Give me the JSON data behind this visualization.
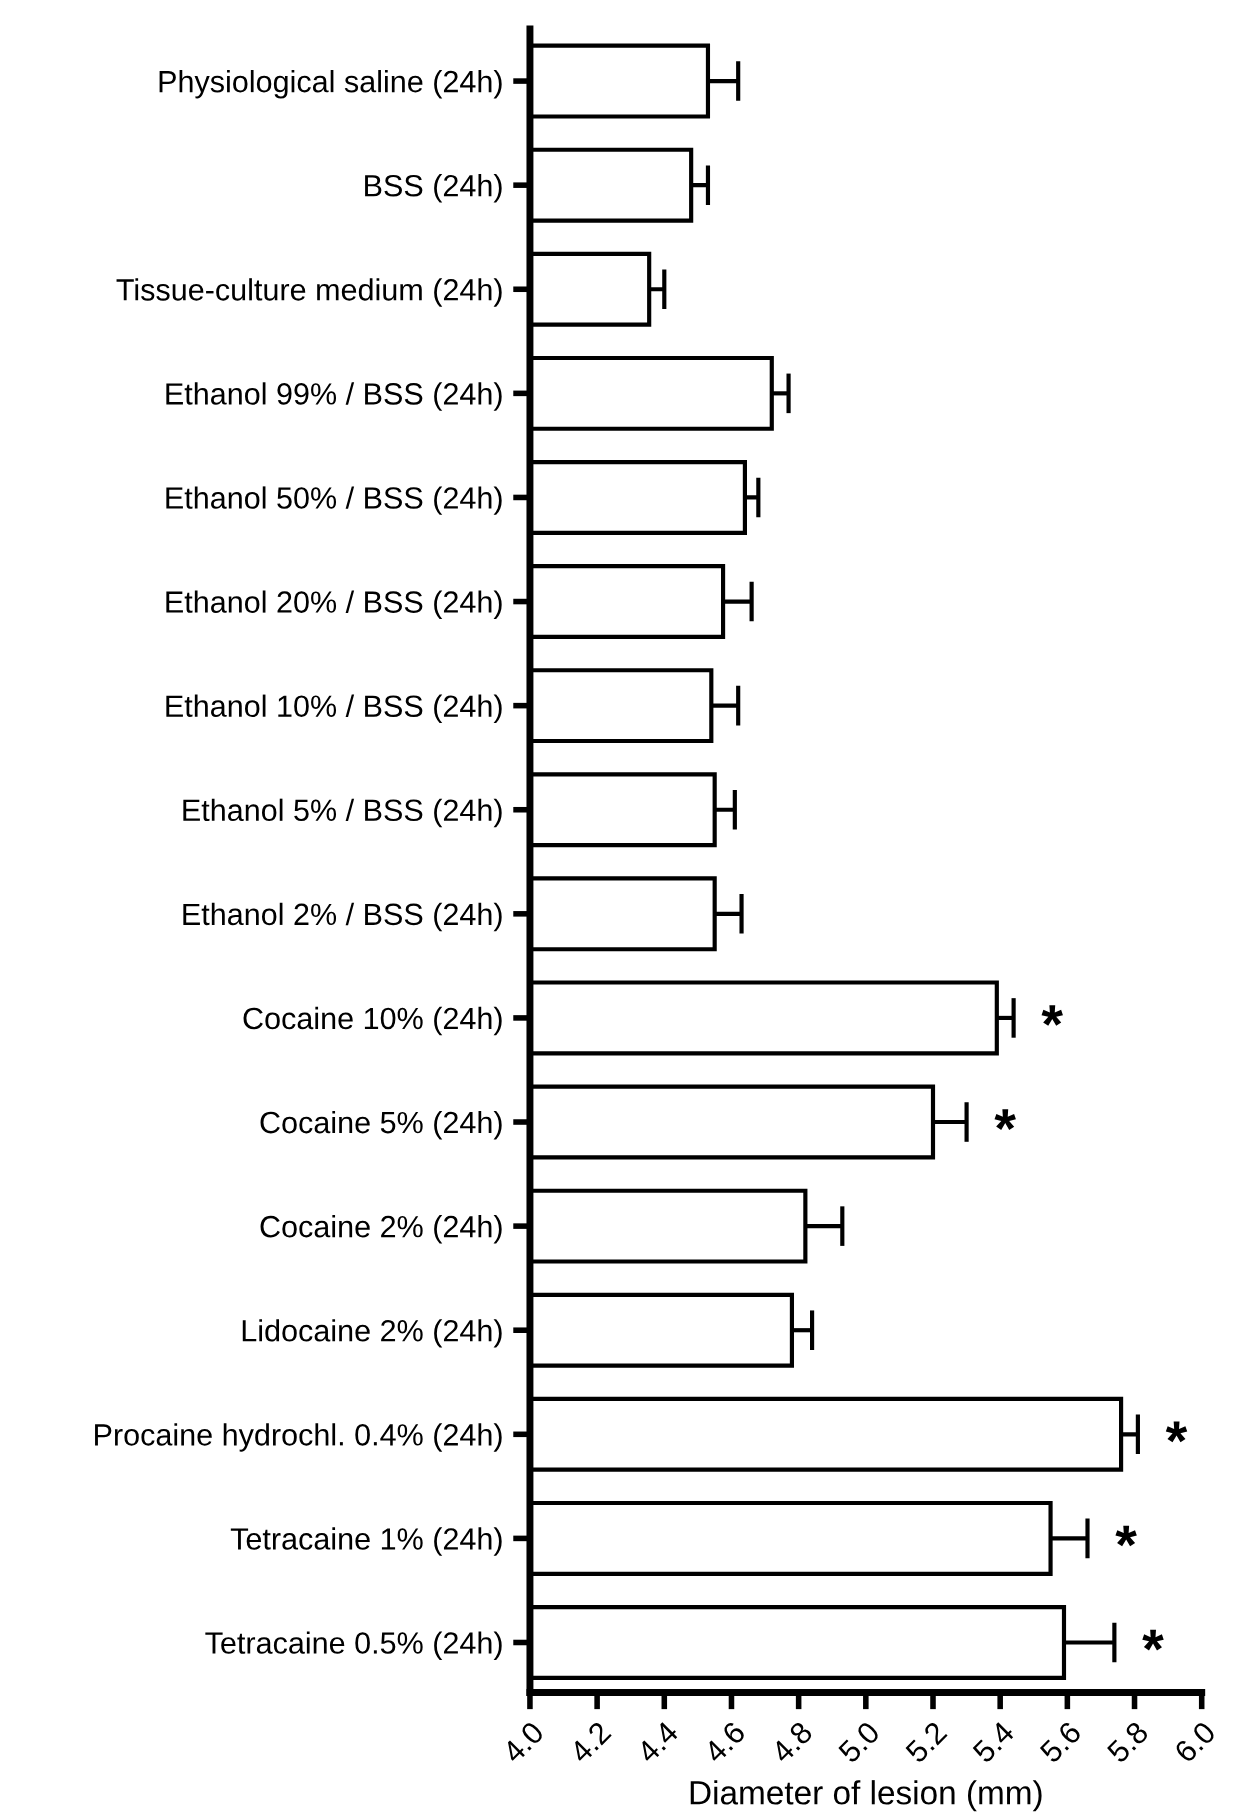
{
  "chart_data": {
    "type": "bar",
    "orientation": "horizontal",
    "xlabel": "Diameter of lesion (mm)",
    "categories": [
      "Physiological saline (24h)",
      "BSS (24h)",
      "Tissue-culture medium (24h)",
      "Ethanol 99% / BSS (24h)",
      "Ethanol 50% / BSS (24h)",
      "Ethanol 20% / BSS (24h)",
      "Ethanol 10% / BSS (24h)",
      "Ethanol 5% / BSS (24h)",
      "Ethanol 2% / BSS (24h)",
      "Cocaine 10% (24h)",
      "Cocaine 5% (24h)",
      "Cocaine 2% (24h)",
      "Lidocaine 2% (24h)",
      "Procaine hydrochl. 0.4% (24h)",
      "Tetracaine 1% (24h)",
      "Tetracaine 0.5% (24h)"
    ],
    "series": [
      {
        "color": "#ffffff",
        "values": [
          4.53,
          4.48,
          4.355,
          4.72,
          4.64,
          4.575,
          4.54,
          4.55,
          4.55,
          5.39,
          5.2,
          4.82,
          4.78,
          5.76,
          5.55,
          5.59
        ],
        "errors": [
          [
            4.53,
            4.62
          ],
          [
            4.48,
            4.53
          ],
          [
            4.355,
            4.4
          ],
          [
            4.72,
            4.77
          ],
          [
            4.64,
            4.68
          ],
          [
            4.575,
            4.66
          ],
          [
            4.54,
            4.62
          ],
          [
            4.55,
            4.61
          ],
          [
            4.55,
            4.63
          ],
          [
            5.39,
            5.44
          ],
          [
            5.2,
            5.3
          ],
          [
            4.82,
            4.93
          ],
          [
            4.78,
            4.84
          ],
          [
            5.76,
            5.81
          ],
          [
            5.55,
            5.66
          ],
          [
            5.59,
            5.74
          ]
        ],
        "value_labels": [
          null,
          null,
          null,
          null,
          null,
          null,
          null,
          null,
          null,
          "*",
          "*",
          null,
          null,
          "*",
          "*",
          "*"
        ]
      }
    ],
    "xlim": [
      4.0,
      6.0
    ],
    "xticks": [
      {
        "value": 4.0,
        "label": "4.0"
      },
      4.2,
      4.4,
      4.6,
      4.8,
      {
        "value": 5.0,
        "label": "5.0"
      },
      5.2,
      5.4,
      5.6,
      5.8,
      {
        "value": 6.0,
        "label": "6.0"
      }
    ],
    "grid": false,
    "legend": false
  }
}
